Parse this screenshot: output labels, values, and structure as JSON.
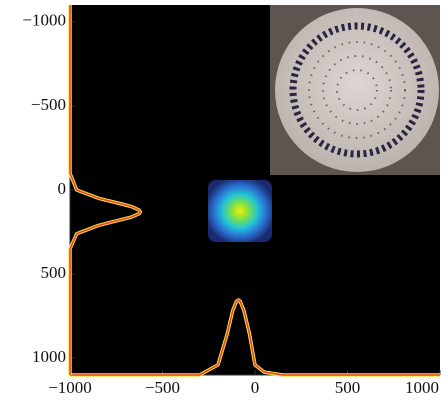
{
  "chart_data": {
    "type": "line",
    "xlim": [
      -1000,
      1000
    ],
    "ylim": [
      -1100,
      1100
    ],
    "y_inverted": true,
    "xticks": [
      {
        "value": -1000,
        "label": "−1000"
      },
      {
        "value": -500,
        "label": "−500"
      },
      0,
      500,
      1000
    ],
    "yticks": [
      {
        "value": -1000,
        "label": "−1000"
      },
      {
        "value": -500,
        "label": "−500"
      },
      0,
      500,
      1000
    ],
    "series": [
      {
        "color": "#e8452c",
        "x": [
          -1000,
          -500,
          -300,
          -200,
          -150,
          -120,
          -100,
          -90,
          -80,
          -60,
          -30,
          0,
          50,
          150,
          300,
          500,
          1000
        ],
        "values": [
          1100,
          1100,
          1100,
          1040,
          854,
          716,
          662,
          654,
          662,
          716,
          854,
          1040,
          1083,
          1100,
          1100,
          1100,
          1100
        ]
      },
      {
        "color": "#e8452c",
        "x": [
          -1000,
          -1000,
          -1000,
          -964,
          -844,
          -731,
          -665,
          -625,
          -620,
          -625,
          -665,
          -844,
          -964,
          -1000,
          -1000,
          -1000
        ],
        "values": [
          -1100,
          -500,
          -100,
          0,
          50,
          80,
          100,
          120,
          130,
          140,
          160,
          210,
          260,
          350,
          500,
          1100
        ]
      }
    ]
  }
}
